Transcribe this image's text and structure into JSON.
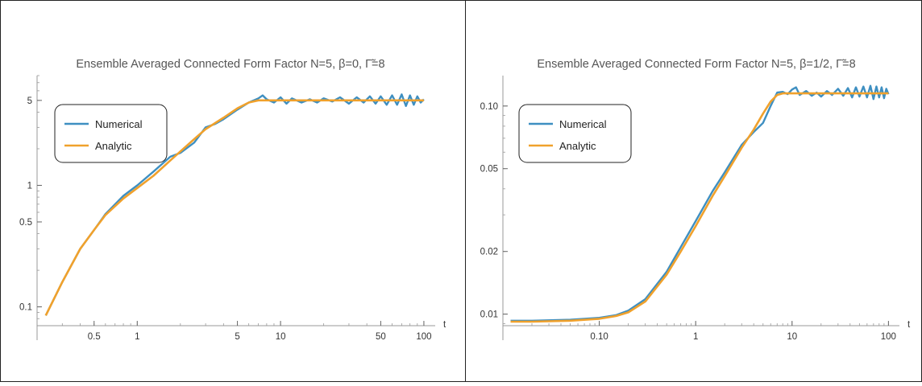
{
  "colors": {
    "numerical": "#3E8FC1",
    "analytic": "#F0A12C",
    "axis": "#999999"
  },
  "chart_data": [
    {
      "type": "line",
      "title": "Ensemble Averaged Connected Form Factor N=5, β=0, Γ̃=8",
      "xlabel": "t",
      "ylabel": "",
      "xscale": "log",
      "yscale": "log",
      "xlim": [
        0.2,
        120
      ],
      "ylim": [
        0.07,
        8
      ],
      "xticks": [
        {
          "v": 0.5,
          "label": "0.5"
        },
        {
          "v": 1,
          "label": "1"
        },
        {
          "v": 5,
          "label": "5"
        },
        {
          "v": 10,
          "label": "10"
        },
        {
          "v": 50,
          "label": "50"
        },
        {
          "v": 100,
          "label": "100"
        }
      ],
      "yticks": [
        {
          "v": 0.1,
          "label": "0.1"
        },
        {
          "v": 0.5,
          "label": "0.5"
        },
        {
          "v": 1,
          "label": "1"
        },
        {
          "v": 5,
          "label": "5"
        }
      ],
      "legend": {
        "position": "top-left",
        "entries": [
          "Numerical",
          "Analytic"
        ]
      },
      "grid": false,
      "series": [
        {
          "name": "Numerical",
          "x": [
            0.23,
            0.3,
            0.4,
            0.5,
            0.6,
            0.8,
            1.0,
            1.3,
            1.7,
            2.0,
            2.5,
            3.0,
            3.5,
            4.0,
            5.0,
            6.0,
            7.0,
            7.5,
            8.0,
            9.0,
            10,
            11,
            12,
            14,
            16,
            18,
            20,
            23,
            26,
            30,
            34,
            38,
            42,
            46,
            50,
            55,
            60,
            65,
            70,
            75,
            80,
            85,
            90,
            95,
            100
          ],
          "y": [
            0.085,
            0.16,
            0.3,
            0.43,
            0.58,
            0.82,
            1.0,
            1.3,
            1.72,
            1.85,
            2.25,
            3.0,
            3.2,
            3.5,
            4.2,
            4.8,
            5.2,
            5.5,
            5.1,
            4.8,
            5.3,
            4.7,
            5.2,
            4.8,
            5.1,
            4.8,
            5.2,
            4.9,
            5.3,
            4.7,
            5.3,
            4.8,
            5.4,
            4.7,
            5.4,
            4.6,
            5.5,
            4.6,
            5.6,
            4.5,
            5.5,
            4.6,
            5.4,
            4.8,
            5.1
          ]
        },
        {
          "name": "Analytic",
          "x": [
            0.23,
            0.3,
            0.4,
            0.5,
            0.6,
            0.8,
            1.0,
            1.3,
            1.7,
            2.0,
            2.5,
            3.0,
            4.0,
            5.0,
            6.0,
            7.0,
            8.0,
            10,
            20,
            50,
            100
          ],
          "y": [
            0.085,
            0.16,
            0.3,
            0.43,
            0.57,
            0.78,
            0.95,
            1.2,
            1.6,
            1.9,
            2.4,
            2.9,
            3.6,
            4.3,
            4.8,
            5.0,
            5.0,
            5.0,
            5.0,
            5.0,
            5.0
          ]
        }
      ]
    },
    {
      "type": "line",
      "title": "Ensemble Averaged Connected Form Factor N=5, β=1/2, Γ̃=8",
      "xlabel": "t",
      "ylabel": "",
      "xscale": "log",
      "yscale": "log",
      "xlim": [
        0.01,
        130
      ],
      "ylim": [
        0.0088,
        0.14
      ],
      "xticks": [
        {
          "v": 0.1,
          "label": "0.10"
        },
        {
          "v": 1,
          "label": "1"
        },
        {
          "v": 10,
          "label": "10"
        },
        {
          "v": 100,
          "label": "100"
        }
      ],
      "yticks": [
        {
          "v": 0.01,
          "label": "0.01"
        },
        {
          "v": 0.02,
          "label": "0.02"
        },
        {
          "v": 0.05,
          "label": "0.05"
        },
        {
          "v": 0.1,
          "label": "0.10"
        }
      ],
      "legend": {
        "position": "top-left",
        "entries": [
          "Numerical",
          "Analytic"
        ]
      },
      "grid": false,
      "series": [
        {
          "name": "Numerical",
          "x": [
            0.012,
            0.02,
            0.05,
            0.1,
            0.15,
            0.2,
            0.3,
            0.5,
            0.7,
            1.0,
            1.5,
            2.0,
            3.0,
            4.0,
            5.0,
            6.0,
            7.0,
            8.0,
            9.0,
            10,
            11,
            12,
            14,
            16,
            18,
            20,
            23,
            26,
            30,
            34,
            38,
            42,
            46,
            50,
            55,
            60,
            65,
            70,
            75,
            80,
            85,
            90,
            95,
            100
          ],
          "y": [
            0.0093,
            0.0093,
            0.0094,
            0.0096,
            0.0099,
            0.0104,
            0.0118,
            0.016,
            0.021,
            0.028,
            0.039,
            0.048,
            0.065,
            0.075,
            0.083,
            0.1,
            0.116,
            0.117,
            0.114,
            0.12,
            0.123,
            0.113,
            0.118,
            0.112,
            0.116,
            0.111,
            0.118,
            0.113,
            0.121,
            0.112,
            0.122,
            0.11,
            0.123,
            0.111,
            0.124,
            0.11,
            0.125,
            0.108,
            0.124,
            0.11,
            0.123,
            0.109,
            0.121,
            0.114
          ]
        },
        {
          "name": "Analytic",
          "x": [
            0.012,
            0.02,
            0.05,
            0.1,
            0.15,
            0.2,
            0.3,
            0.5,
            0.7,
            1.0,
            1.5,
            2.0,
            3.0,
            4.0,
            5.0,
            6.0,
            7.0,
            8.0,
            10,
            20,
            50,
            100
          ],
          "y": [
            0.0092,
            0.0092,
            0.0093,
            0.0095,
            0.0098,
            0.0102,
            0.0115,
            0.0155,
            0.02,
            0.0265,
            0.037,
            0.046,
            0.063,
            0.077,
            0.092,
            0.105,
            0.113,
            0.115,
            0.115,
            0.115,
            0.115,
            0.115
          ]
        }
      ]
    }
  ]
}
